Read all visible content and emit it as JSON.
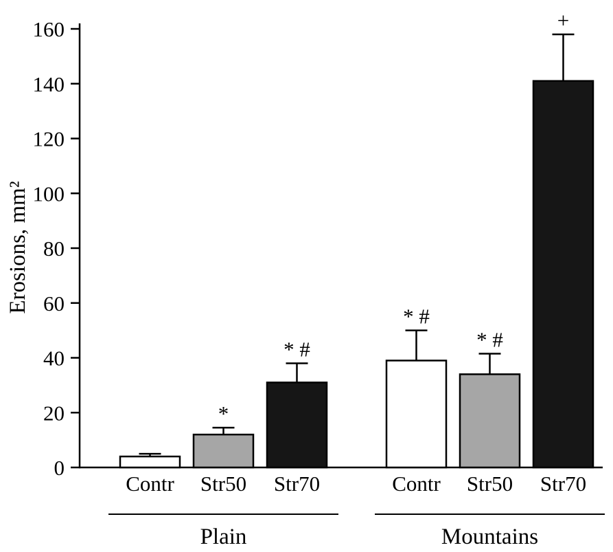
{
  "figure": {
    "background": "#ffffff",
    "axis_color": "#000000"
  },
  "chart_data": {
    "type": "bar",
    "title": "",
    "xlabel": "",
    "ylabel": "Erosions, mm²",
    "ylim": [
      0,
      160
    ],
    "ytick_step": 20,
    "yticks": [
      0,
      20,
      40,
      60,
      80,
      100,
      120,
      140,
      160
    ],
    "grid": false,
    "legend": "none",
    "error_bars": "upper only, capped",
    "bar_fills": {
      "Contr": "#ffffff",
      "Str50": "#a6a6a6",
      "Str70": "#161616"
    },
    "groups": [
      {
        "label": "Plain",
        "bars": [
          {
            "category": "Contr",
            "value": 4,
            "error": 1,
            "fill": "#ffffff",
            "annotation": ""
          },
          {
            "category": "Str50",
            "value": 12,
            "error": 2.5,
            "fill": "#a6a6a6",
            "annotation": "*"
          },
          {
            "category": "Str70",
            "value": 31,
            "error": 7,
            "fill": "#161616",
            "annotation": "* #"
          }
        ]
      },
      {
        "label": "Mountains",
        "bars": [
          {
            "category": "Contr",
            "value": 39,
            "error": 11,
            "fill": "#ffffff",
            "annotation": "* #"
          },
          {
            "category": "Str50",
            "value": 34,
            "error": 7.5,
            "fill": "#a6a6a6",
            "annotation": "* #"
          },
          {
            "category": "Str70",
            "value": 141,
            "error": 17,
            "fill": "#161616",
            "annotation": "+"
          }
        ]
      }
    ]
  }
}
